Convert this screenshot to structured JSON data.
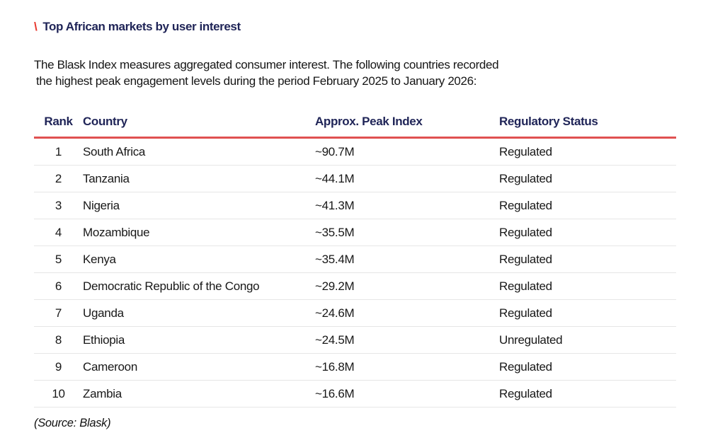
{
  "header": {
    "accent": "\\",
    "title": "Top African markets by user interest"
  },
  "intro": {
    "line1": "The Blask Index measures aggregated consumer interest. The following countries recorded",
    "line2": "the highest peak engagement levels during the period February 2025 to January 2026:"
  },
  "table": {
    "columns": [
      "Rank",
      "Country",
      "Approx. Peak Index",
      "Regulatory Status"
    ],
    "rows": [
      {
        "rank": "1",
        "country": "South Africa",
        "index": "~90.7M",
        "status": "Regulated"
      },
      {
        "rank": "2",
        "country": "Tanzania",
        "index": "~44.1M",
        "status": "Regulated"
      },
      {
        "rank": "3",
        "country": "Nigeria",
        "index": "~41.3M",
        "status": "Regulated"
      },
      {
        "rank": "4",
        "country": "Mozambique",
        "index": "~35.5M",
        "status": "Regulated"
      },
      {
        "rank": "5",
        "country": "Kenya",
        "index": "~35.4M",
        "status": "Regulated"
      },
      {
        "rank": "6",
        "country": "Democratic Republic of the Congo",
        "index": "~29.2M",
        "status": "Regulated"
      },
      {
        "rank": "7",
        "country": "Uganda",
        "index": "~24.6M",
        "status": "Regulated"
      },
      {
        "rank": "8",
        "country": "Ethiopia",
        "index": "~24.5M",
        "status": "Unregulated"
      },
      {
        "rank": "9",
        "country": "Cameroon",
        "index": "~16.8M",
        "status": "Regulated"
      },
      {
        "rank": "10",
        "country": "Zambia",
        "index": "~16.6M",
        "status": "Regulated"
      }
    ]
  },
  "footer": {
    "source": "(Source: Blask)"
  },
  "colors": {
    "accent_red": "#e8382d",
    "rule_red": "#e05151",
    "heading_navy": "#1f2457",
    "body_text": "#1a1a1a",
    "row_divider": "#e6e6e6"
  }
}
